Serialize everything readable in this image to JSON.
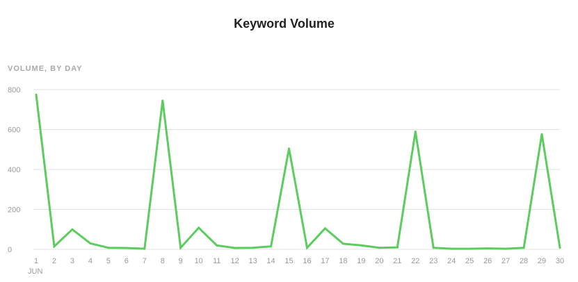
{
  "chart_data": {
    "type": "line",
    "title": "Keyword Volume",
    "subtitle": "VOLUME, BY DAY",
    "x": [
      "1",
      "2",
      "3",
      "4",
      "5",
      "6",
      "7",
      "8",
      "9",
      "10",
      "11",
      "12",
      "13",
      "14",
      "15",
      "16",
      "17",
      "18",
      "19",
      "20",
      "21",
      "22",
      "23",
      "24",
      "25",
      "26",
      "27",
      "28",
      "29",
      "30"
    ],
    "x_sublabel": "JUN",
    "series": [
      {
        "values": [
          775,
          15,
          100,
          30,
          8,
          7,
          3,
          745,
          8,
          108,
          20,
          7,
          8,
          15,
          505,
          8,
          105,
          28,
          20,
          8,
          10,
          590,
          8,
          3,
          3,
          5,
          3,
          8,
          577,
          8
        ]
      }
    ],
    "ylim": [
      0,
      800
    ],
    "yticks": [
      "0",
      "200",
      "400",
      "600",
      "800"
    ],
    "grid": true,
    "colors": {
      "line": "#5ccc5e",
      "grid": "#e2e2e2",
      "tick_text": "#9a9a9a"
    }
  }
}
